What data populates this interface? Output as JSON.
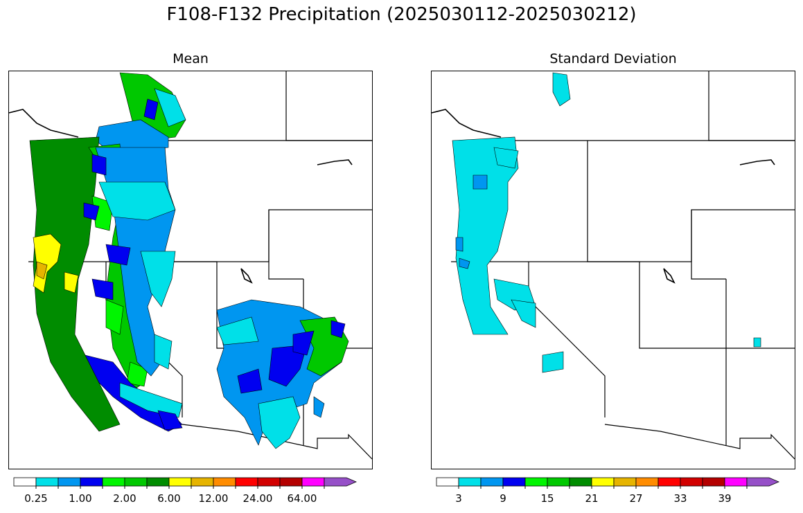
{
  "title": "F108-F132 Precipitation (2025030112-2025030212)",
  "panels": [
    {
      "title": "Mean",
      "colorbar": {
        "colors": [
          "#ffffff",
          "#00e0e8",
          "#0096f0",
          "#0000f0",
          "#00f500",
          "#00c800",
          "#008c00",
          "#ffff00",
          "#e6b400",
          "#ff8c00",
          "#ff0000",
          "#d20000",
          "#b40000",
          "#ff00ff",
          "#9650c8"
        ],
        "tick_labels": [
          "0.25",
          "1.00",
          "2.00",
          "6.00",
          "12.00",
          "24.00",
          "64.00"
        ]
      }
    },
    {
      "title": "Standard Deviation",
      "colorbar": {
        "colors": [
          "#ffffff",
          "#00e0e8",
          "#0096f0",
          "#0000f0",
          "#00f500",
          "#00c800",
          "#008c00",
          "#ffff00",
          "#e6b400",
          "#ff8c00",
          "#ff0000",
          "#d20000",
          "#b40000",
          "#ff00ff",
          "#9650c8"
        ],
        "tick_labels": [
          "3",
          "9",
          "15",
          "21",
          "27",
          "33",
          "39"
        ]
      }
    }
  ]
}
